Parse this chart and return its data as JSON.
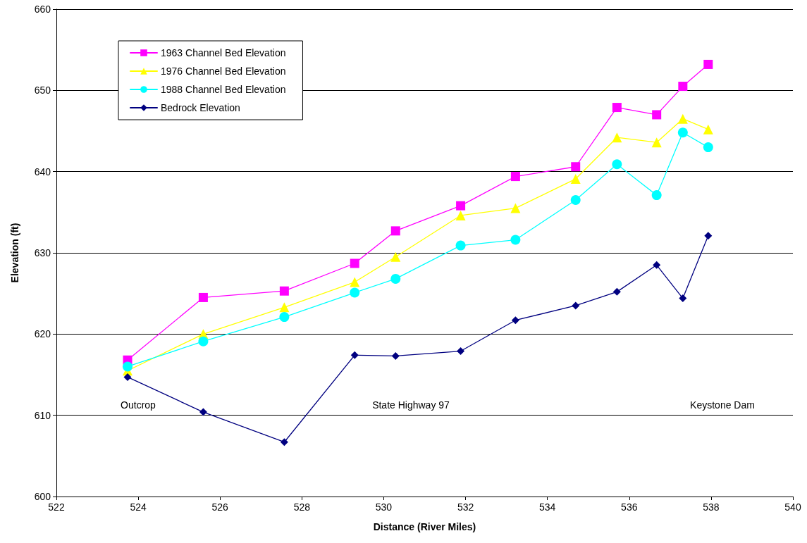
{
  "chart_data": {
    "type": "line",
    "xlabel": "Distance (River Miles)",
    "ylabel": "Elevation (ft)",
    "x": [
      523.74,
      525.59,
      527.57,
      529.29,
      530.29,
      531.88,
      533.22,
      534.69,
      535.7,
      536.67,
      537.31,
      537.93
    ],
    "series": [
      {
        "name": "1963 Channel Bed Elevation",
        "color": "#ff00ff",
        "marker": "square",
        "values": [
          616.8,
          624.5,
          625.3,
          628.7,
          632.7,
          635.8,
          639.4,
          640.6,
          647.9,
          647.0,
          650.5,
          653.2
        ]
      },
      {
        "name": "1976 Channel Bed Elevation",
        "color": "#ffff00",
        "marker": "triangle",
        "values": [
          615.5,
          620.0,
          623.3,
          626.4,
          629.5,
          634.6,
          635.5,
          639.1,
          644.2,
          643.6,
          646.5,
          645.2
        ]
      },
      {
        "name": "1988 Channel Bed Elevation",
        "color": "#00ffff",
        "marker": "circle",
        "values": [
          616.0,
          619.1,
          622.1,
          625.1,
          626.8,
          630.9,
          631.6,
          636.5,
          640.9,
          637.1,
          644.8,
          643.0
        ]
      },
      {
        "name": "Bedrock Elevation",
        "color": "#000080",
        "marker": "diamond",
        "values": [
          614.7,
          610.4,
          606.7,
          617.4,
          617.3,
          617.9,
          621.7,
          623.5,
          625.2,
          628.5,
          624.4,
          632.1
        ]
      }
    ],
    "xlim": [
      522,
      540
    ],
    "xticks": [
      522,
      524,
      526,
      528,
      530,
      532,
      534,
      536,
      538,
      540
    ],
    "ylim": [
      600,
      660
    ],
    "yticks": [
      600,
      610,
      620,
      630,
      640,
      650,
      660
    ],
    "grid": "y",
    "legend": "top left",
    "line_style": "solid",
    "annotations": [
      "Outcrop",
      "State Highway 97",
      "Keystone Dam"
    ]
  }
}
